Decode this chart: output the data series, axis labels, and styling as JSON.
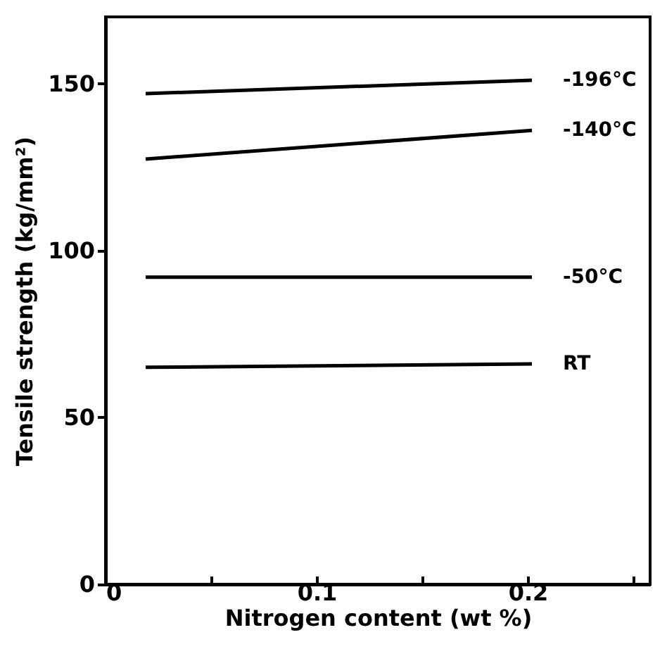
{
  "chart_data": {
    "type": "line",
    "xlabel": "Nitrogen content (wt %)",
    "ylabel": "Tensile strength (kg/mm²)",
    "xlim": [
      0,
      0.258
    ],
    "xticks": [
      0,
      {
        "value": 0.05,
        "label": null
      },
      0.1,
      {
        "value": 0.15,
        "label": null
      },
      0.2,
      {
        "value": 0.25,
        "label": null
      }
    ],
    "ylim": [
      0,
      170
    ],
    "yticks": [
      0,
      50,
      100,
      150
    ],
    "x": [
      0.019,
      0.202
    ],
    "series": [
      {
        "name": "-196°C",
        "color": "#000000",
        "values": [
          147,
          151
        ]
      },
      {
        "name": "-140°C",
        "color": "#000000",
        "values": [
          127.4,
          136
        ]
      },
      {
        "name": "-50°C",
        "color": "#000000",
        "values": [
          92,
          92
        ]
      },
      {
        "name": "RT",
        "color": "#000000",
        "values": [
          65,
          66
        ]
      }
    ],
    "grid": false,
    "marker": "none",
    "line_style": "solid"
  }
}
